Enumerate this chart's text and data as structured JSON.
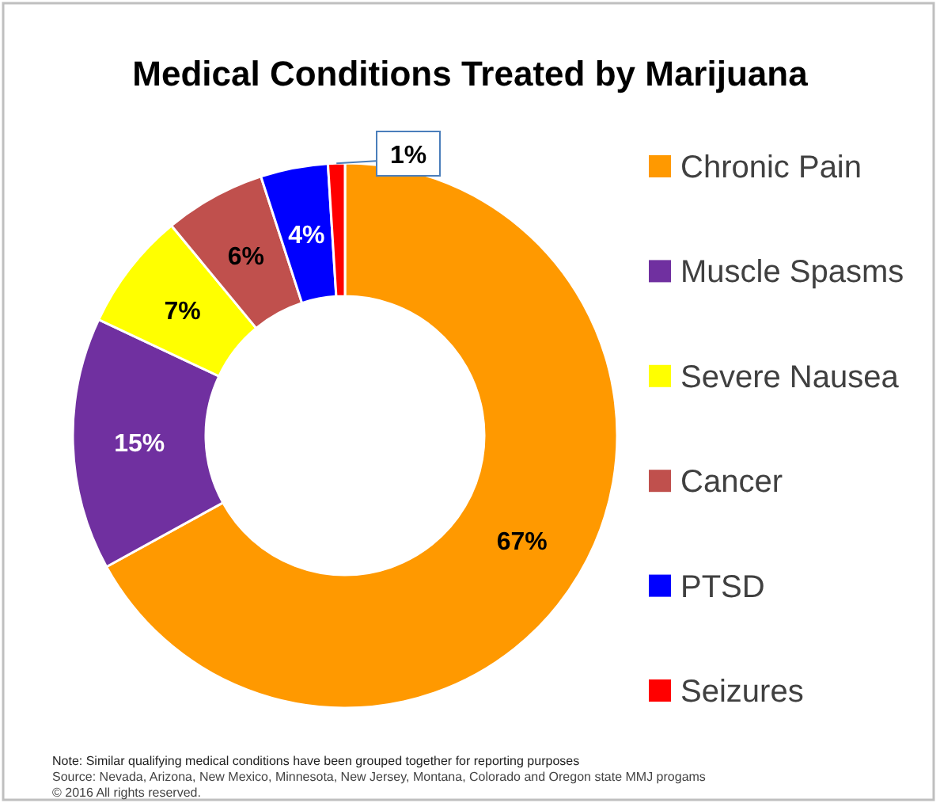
{
  "chart_data": {
    "type": "donut",
    "title": "Medical Conditions Treated by Marijuana",
    "categories": [
      "Chronic Pain",
      "Muscle Spasms",
      "Severe Nausea",
      "Cancer",
      "PTSD",
      "Seizures"
    ],
    "values": [
      67,
      15,
      7,
      6,
      4,
      1
    ],
    "colors": [
      "#ff9900",
      "#7030a0",
      "#ffff00",
      "#c0504d",
      "#0000ff",
      "#ff0000"
    ],
    "value_labels": [
      "67%",
      "15%",
      "7%",
      "6%",
      "4%",
      "1%"
    ],
    "legend": "right",
    "annotations": [
      "Note: Similar qualifying medical conditions have been grouped together for reporting purposes",
      "Source: Nevada, Arizona, New Mexico, Minnesota, New Jersey, Montana, Colorado and Oregon state MMJ progams",
      "© 2016 All rights reserved."
    ]
  }
}
